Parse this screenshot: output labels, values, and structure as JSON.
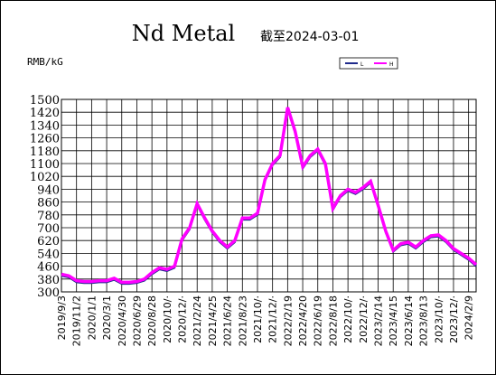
{
  "chart_data": {
    "type": "line",
    "title": "Nd Metal",
    "subtitle": "截至2024-03-01",
    "y_label": "RMB/kG",
    "categories": [
      "2019/9/3",
      null,
      "2019/11/2",
      null,
      "2020/1/1",
      null,
      "2020/3/1",
      null,
      "2020/4/30",
      null,
      "2020/6/29",
      null,
      "2020/8/28",
      null,
      "2020/10/·",
      null,
      "2020/12/·",
      null,
      "2021/2/24",
      null,
      "2021/4/25",
      null,
      "2021/6/24",
      null,
      "2021/8/23",
      null,
      "2021/10/·",
      null,
      "2021/12/·",
      null,
      "2022/2/19",
      null,
      "2022/4/20",
      null,
      "2022/6/19",
      null,
      "2022/8/18",
      null,
      "2022/10/·",
      null,
      "2022/12/·",
      null,
      "2023/2/14",
      null,
      "2023/4/15",
      null,
      "2023/6/14",
      null,
      "2023/8/13",
      null,
      "2023/10/·",
      null,
      "2023/12/·",
      null,
      "2024/2/9",
      null
    ],
    "series": [
      {
        "name": "L",
        "color": "#1f2a8c",
        "values": [
          400,
          390,
          360,
          355,
          355,
          360,
          360,
          375,
          350,
          350,
          355,
          370,
          410,
          440,
          430,
          450,
          620,
          690,
          840,
          750,
          670,
          610,
          570,
          610,
          750,
          750,
          780,
          990,
          1090,
          1140,
          1440,
          1290,
          1070,
          1140,
          1180,
          1090,
          810,
          890,
          930,
          910,
          940,
          980,
          830,
          670,
          550,
          590,
          600,
          570,
          610,
          640,
          645,
          610,
          560,
          530,
          500,
          460
        ]
      },
      {
        "name": "H",
        "color": "#ff00ff",
        "values": [
          410,
          400,
          370,
          365,
          365,
          370,
          370,
          385,
          360,
          360,
          365,
          380,
          420,
          450,
          440,
          460,
          630,
          700,
          850,
          760,
          680,
          620,
          580,
          620,
          760,
          760,
          790,
          1000,
          1100,
          1150,
          1450,
          1300,
          1080,
          1150,
          1190,
          1100,
          820,
          900,
          940,
          920,
          950,
          990,
          840,
          680,
          560,
          600,
          610,
          580,
          620,
          650,
          655,
          620,
          570,
          540,
          510,
          470
        ]
      }
    ],
    "ylim": [
      300,
      1500
    ],
    "yticks": [
      300,
      380,
      460,
      540,
      620,
      700,
      780,
      860,
      940,
      1020,
      1100,
      1180,
      1260,
      1340,
      1420,
      1500
    ],
    "grid": true
  }
}
